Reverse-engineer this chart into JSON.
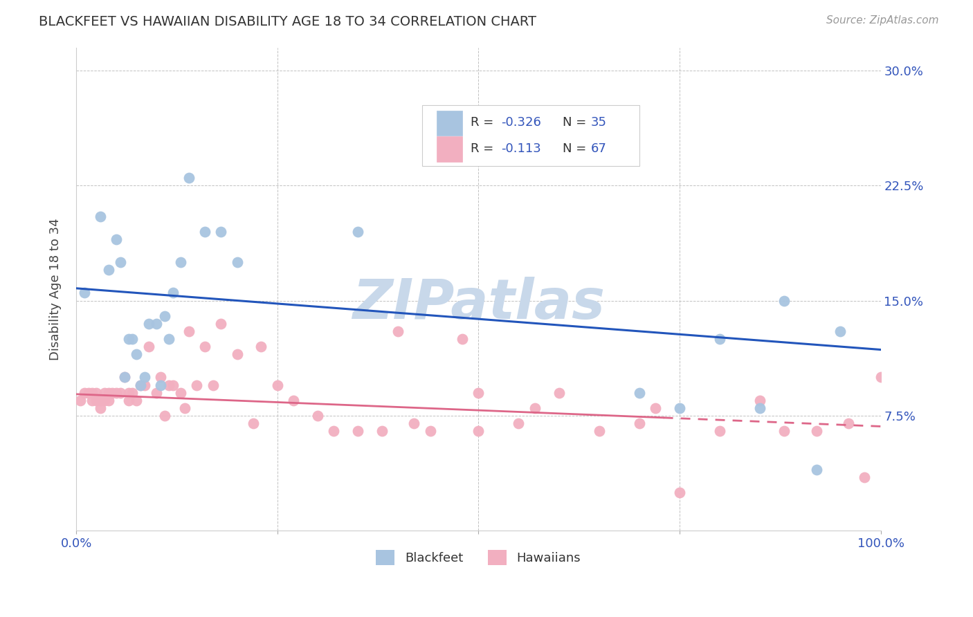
{
  "title": "BLACKFEET VS HAWAIIAN DISABILITY AGE 18 TO 34 CORRELATION CHART",
  "source": "Source: ZipAtlas.com",
  "ylabel": "Disability Age 18 to 34",
  "xlim": [
    0.0,
    1.0
  ],
  "ylim": [
    0.0,
    0.315
  ],
  "y_tick_labels": [
    "7.5%",
    "15.0%",
    "22.5%",
    "30.0%"
  ],
  "y_tick_values": [
    0.075,
    0.15,
    0.225,
    0.3
  ],
  "blackfeet_color": "#a8c4e0",
  "hawaiian_color": "#f2afc0",
  "trend_blue": "#2255bb",
  "trend_pink": "#dd6688",
  "watermark_color": "#c8d8ea",
  "blackfeet_x": [
    0.01,
    0.03,
    0.04,
    0.05,
    0.055,
    0.06,
    0.065,
    0.07,
    0.075,
    0.08,
    0.085,
    0.09,
    0.1,
    0.105,
    0.11,
    0.115,
    0.12,
    0.13,
    0.14,
    0.16,
    0.18,
    0.2,
    0.35,
    0.7,
    0.75,
    0.8,
    0.85,
    0.88,
    0.92,
    0.95
  ],
  "blackfeet_y": [
    0.155,
    0.205,
    0.17,
    0.19,
    0.175,
    0.1,
    0.125,
    0.125,
    0.115,
    0.095,
    0.1,
    0.135,
    0.135,
    0.095,
    0.14,
    0.125,
    0.155,
    0.175,
    0.23,
    0.195,
    0.195,
    0.175,
    0.195,
    0.09,
    0.08,
    0.125,
    0.08,
    0.15,
    0.04,
    0.13
  ],
  "hawaiian_x": [
    0.005,
    0.01,
    0.015,
    0.02,
    0.02,
    0.025,
    0.025,
    0.03,
    0.03,
    0.035,
    0.035,
    0.04,
    0.04,
    0.045,
    0.05,
    0.055,
    0.06,
    0.065,
    0.065,
    0.07,
    0.075,
    0.08,
    0.085,
    0.09,
    0.1,
    0.105,
    0.11,
    0.115,
    0.12,
    0.13,
    0.135,
    0.14,
    0.15,
    0.16,
    0.17,
    0.18,
    0.2,
    0.22,
    0.23,
    0.25,
    0.27,
    0.3,
    0.32,
    0.35,
    0.38,
    0.4,
    0.42,
    0.44,
    0.48,
    0.5,
    0.5,
    0.55,
    0.57,
    0.6,
    0.65,
    0.7,
    0.72,
    0.75,
    0.8,
    0.85,
    0.88,
    0.92,
    0.96,
    0.98,
    1.0
  ],
  "hawaiian_y": [
    0.085,
    0.09,
    0.09,
    0.085,
    0.09,
    0.085,
    0.09,
    0.085,
    0.08,
    0.085,
    0.09,
    0.085,
    0.09,
    0.09,
    0.09,
    0.09,
    0.1,
    0.085,
    0.09,
    0.09,
    0.085,
    0.095,
    0.095,
    0.12,
    0.09,
    0.1,
    0.075,
    0.095,
    0.095,
    0.09,
    0.08,
    0.13,
    0.095,
    0.12,
    0.095,
    0.135,
    0.115,
    0.07,
    0.12,
    0.095,
    0.085,
    0.075,
    0.065,
    0.065,
    0.065,
    0.13,
    0.07,
    0.065,
    0.125,
    0.065,
    0.09,
    0.07,
    0.08,
    0.09,
    0.065,
    0.07,
    0.08,
    0.025,
    0.065,
    0.085,
    0.065,
    0.065,
    0.07,
    0.035,
    0.1
  ],
  "bf_trend_x0": 0.0,
  "bf_trend_y0": 0.158,
  "bf_trend_x1": 1.0,
  "bf_trend_y1": 0.118,
  "hw_trend_x0": 0.0,
  "hw_trend_y0": 0.089,
  "hw_trend_x1": 1.0,
  "hw_trend_y1": 0.068
}
